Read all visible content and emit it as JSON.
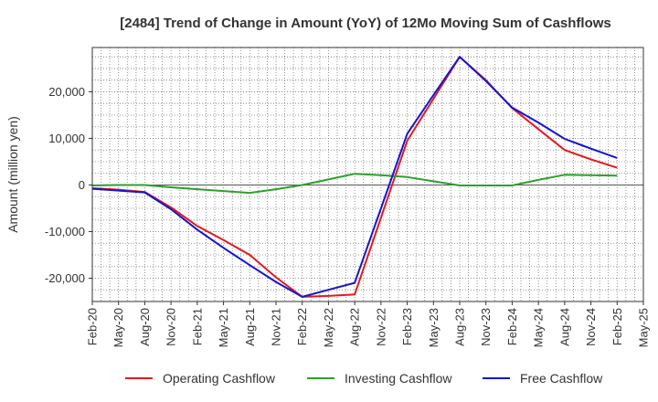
{
  "chart_data": {
    "type": "line",
    "title": "[2484]  Trend of Change in Amount (YoY) of 12Mo Moving Sum of Cashflows",
    "xlabel": "",
    "ylabel": "Amount (million yen)",
    "categories": [
      "Feb-20",
      "May-20",
      "Aug-20",
      "Nov-20",
      "Feb-21",
      "May-21",
      "Aug-21",
      "Nov-21",
      "Feb-22",
      "May-22",
      "Aug-22",
      "Nov-22",
      "Feb-23",
      "May-23",
      "Aug-23",
      "Nov-23",
      "Feb-24",
      "May-24",
      "Aug-24",
      "Nov-24",
      "Feb-25",
      "May-25"
    ],
    "ylim": [
      -25000,
      29500
    ],
    "yticks": [
      {
        "value": 20000,
        "label": "20,000"
      },
      {
        "value": 10000,
        "label": "10,000"
      },
      {
        "value": 0,
        "label": "0"
      },
      {
        "value": -10000,
        "label": "-10,000"
      },
      {
        "value": -20000,
        "label": "-20,000"
      }
    ],
    "grid": true,
    "legend_position": "bottom",
    "series": [
      {
        "name": "Operating Cashflow",
        "color": "#e31a1c",
        "values": [
          -700,
          -1000,
          -1500,
          -4800,
          -8800,
          -11800,
          -15000,
          -19800,
          -24000,
          -23800,
          -23500,
          -7000,
          9500,
          18500,
          27500,
          22500,
          16500,
          12000,
          7500,
          5500,
          3700,
          null
        ]
      },
      {
        "name": "Investing Cashflow",
        "color": "#2ca02c",
        "values": [
          -100,
          0,
          0,
          -500,
          -900,
          -1300,
          -1700,
          -900,
          0,
          1200,
          2400,
          2100,
          1700,
          800,
          -100,
          -100,
          -100,
          1100,
          2200,
          2100,
          2000,
          null
        ]
      },
      {
        "name": "Free Cashflow",
        "color": "#1515d0",
        "values": [
          -800,
          -1200,
          -1600,
          -5200,
          -9600,
          -13500,
          -17200,
          -20800,
          -24000,
          -22500,
          -21000,
          -5000,
          11000,
          19300,
          27500,
          22300,
          16600,
          13400,
          9900,
          7800,
          5800,
          null
        ]
      }
    ]
  }
}
